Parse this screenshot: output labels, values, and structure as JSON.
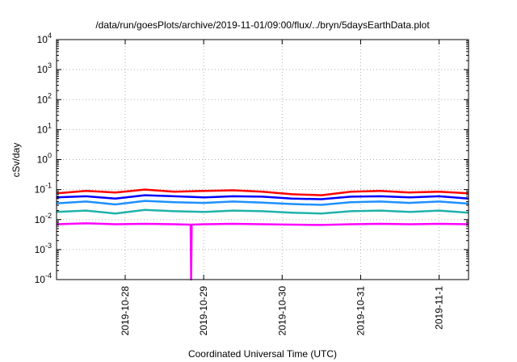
{
  "chart_data": {
    "type": "line",
    "title": "/data/run/goesPlots/archive/2019-11-01/09:00/flux/../bryn/5daysEarthData.plot",
    "xlabel": "Coordinated Universal Time (UTC)",
    "ylabel": "cSv/day",
    "yscale": "log",
    "ylim": [
      0.0001,
      10000
    ],
    "y_ticks": [
      {
        "base": "10",
        "exp": "-4",
        "value": 0.0001
      },
      {
        "base": "10",
        "exp": "-3",
        "value": 0.001
      },
      {
        "base": "10",
        "exp": "-2",
        "value": 0.01
      },
      {
        "base": "10",
        "exp": "-1",
        "value": 0.1
      },
      {
        "base": "10",
        "exp": "0",
        "value": 1
      },
      {
        "base": "10",
        "exp": "1",
        "value": 10
      },
      {
        "base": "10",
        "exp": "2",
        "value": 100
      },
      {
        "base": "10",
        "exp": "3",
        "value": 1000
      },
      {
        "base": "10",
        "exp": "4",
        "value": 10000
      }
    ],
    "xlim": [
      "2019-10-27 03:00",
      "2019-11-01 09:00"
    ],
    "x_ticks": [
      "2019-10-28",
      "2019-10-29",
      "2019-10-30",
      "2019-10-31",
      "2019-11-1"
    ],
    "grid": true,
    "series": [
      {
        "color": "#ff0000",
        "x": [
          "2019-10-27 03:00",
          "2019-10-27 12:00",
          "2019-10-27 21:00",
          "2019-10-28 06:00",
          "2019-10-28 15:00",
          "2019-10-29 00:00",
          "2019-10-29 09:00",
          "2019-10-29 18:00",
          "2019-10-30 03:00",
          "2019-10-30 12:00",
          "2019-10-30 21:00",
          "2019-10-31 06:00",
          "2019-10-31 15:00",
          "2019-11-01 00:00",
          "2019-11-01 09:00"
        ],
        "values": [
          0.075,
          0.09,
          0.08,
          0.1,
          0.085,
          0.09,
          0.095,
          0.085,
          0.07,
          0.065,
          0.085,
          0.09,
          0.08,
          0.085,
          0.075
        ]
      },
      {
        "color": "#0000ff",
        "x": [
          "2019-10-27 03:00",
          "2019-10-27 12:00",
          "2019-10-27 21:00",
          "2019-10-28 06:00",
          "2019-10-28 15:00",
          "2019-10-29 00:00",
          "2019-10-29 09:00",
          "2019-10-29 18:00",
          "2019-10-30 03:00",
          "2019-10-30 12:00",
          "2019-10-30 21:00",
          "2019-10-31 06:00",
          "2019-10-31 15:00",
          "2019-11-01 00:00",
          "2019-11-01 09:00"
        ],
        "values": [
          0.055,
          0.06,
          0.05,
          0.065,
          0.06,
          0.055,
          0.06,
          0.058,
          0.05,
          0.048,
          0.058,
          0.06,
          0.055,
          0.06,
          0.05
        ]
      },
      {
        "color": "#1e90ff",
        "x": [
          "2019-10-27 03:00",
          "2019-10-27 12:00",
          "2019-10-27 21:00",
          "2019-10-28 06:00",
          "2019-10-28 15:00",
          "2019-10-29 00:00",
          "2019-10-29 09:00",
          "2019-10-29 18:00",
          "2019-10-30 03:00",
          "2019-10-30 12:00",
          "2019-10-30 21:00",
          "2019-10-31 06:00",
          "2019-10-31 15:00",
          "2019-11-01 00:00",
          "2019-11-01 09:00"
        ],
        "values": [
          0.035,
          0.04,
          0.032,
          0.042,
          0.038,
          0.036,
          0.04,
          0.037,
          0.033,
          0.031,
          0.038,
          0.04,
          0.036,
          0.04,
          0.034
        ]
      },
      {
        "color": "#20b2aa",
        "x": [
          "2019-10-27 03:00",
          "2019-10-27 12:00",
          "2019-10-27 21:00",
          "2019-10-28 06:00",
          "2019-10-28 15:00",
          "2019-10-29 00:00",
          "2019-10-29 09:00",
          "2019-10-29 18:00",
          "2019-10-30 03:00",
          "2019-10-30 12:00",
          "2019-10-30 21:00",
          "2019-10-31 06:00",
          "2019-10-31 15:00",
          "2019-11-01 00:00",
          "2019-11-01 09:00"
        ],
        "values": [
          0.018,
          0.02,
          0.016,
          0.021,
          0.019,
          0.018,
          0.02,
          0.019,
          0.017,
          0.016,
          0.019,
          0.02,
          0.018,
          0.02,
          0.017
        ]
      },
      {
        "color": "#ff00ff",
        "x": [
          "2019-10-27 03:00",
          "2019-10-27 12:00",
          "2019-10-27 21:00",
          "2019-10-28 06:00",
          "2019-10-28 15:00",
          "2019-10-28 20:00",
          "2019-10-28 20:10",
          "2019-10-28 20:20",
          "2019-10-29 00:00",
          "2019-10-29 09:00",
          "2019-10-29 18:00",
          "2019-10-30 03:00",
          "2019-10-30 12:00",
          "2019-10-30 21:00",
          "2019-10-31 06:00",
          "2019-10-31 15:00",
          "2019-11-01 00:00",
          "2019-11-01 09:00"
        ],
        "values": [
          0.007,
          0.0075,
          0.007,
          0.0072,
          0.007,
          0.0068,
          0.0001,
          0.0068,
          0.007,
          0.0072,
          0.007,
          0.0068,
          0.0066,
          0.007,
          0.0072,
          0.007,
          0.0072,
          0.007
        ]
      }
    ]
  }
}
